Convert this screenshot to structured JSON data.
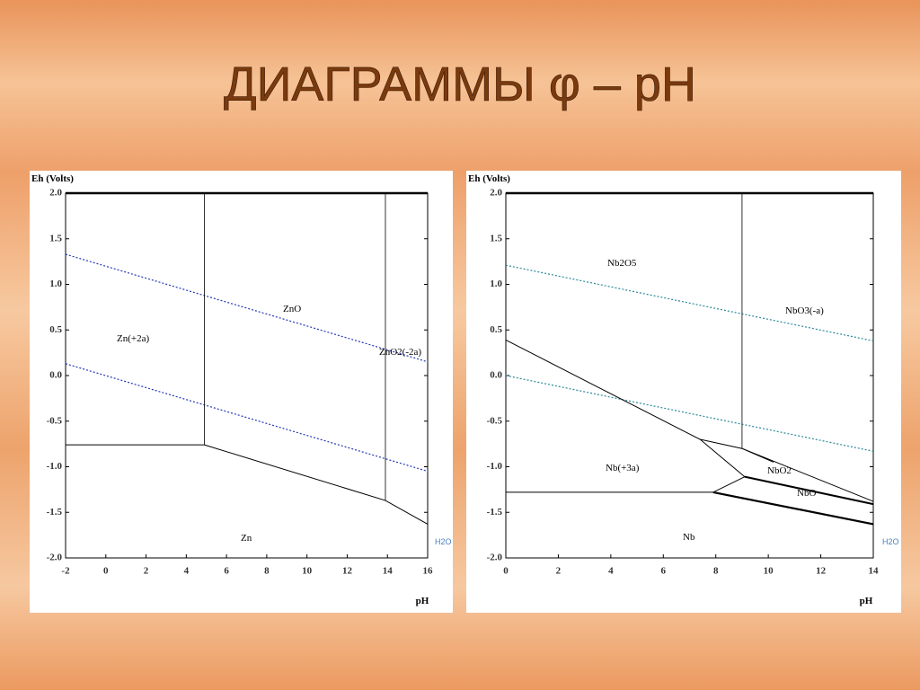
{
  "title": "ДИАГРАММЫ φ – pH",
  "chart_data": [
    {
      "type": "line",
      "x_label": "pH",
      "y_label": "Eh (Volts)",
      "xlim": [
        -2,
        16
      ],
      "xticks": [
        -2,
        0,
        2,
        4,
        6,
        8,
        10,
        12,
        14,
        16
      ],
      "ylim": [
        -2,
        2
      ],
      "yticks": [
        {
          "value": -2,
          "label": "-2.0"
        },
        {
          "value": -1.5,
          "label": "-1.5"
        },
        {
          "value": -1,
          "label": "-1.0"
        },
        -0.5,
        {
          "value": 0,
          "label": "0.0"
        },
        0.5,
        {
          "value": 1,
          "label": "1.0"
        },
        1.5,
        {
          "value": 2,
          "label": "2.0"
        }
      ],
      "series": [
        {
          "color": "#2438b8",
          "linestyle": "dotted",
          "linewidth": 1.2,
          "x": [
            -2,
            16
          ],
          "values": [
            1.33,
            0.15
          ]
        },
        {
          "color": "#2438b8",
          "linestyle": "dotted",
          "linewidth": 1.2,
          "x": [
            -2,
            16
          ],
          "values": [
            0.13,
            -1.05
          ]
        },
        {
          "color": "#000000",
          "linestyle": "solid",
          "linewidth": 1,
          "x": [
            -2,
            4.9
          ],
          "values": [
            -0.76,
            -0.76
          ]
        },
        {
          "color": "#000000",
          "linestyle": "solid",
          "linewidth": 1,
          "x": [
            4.9,
            13.9,
            16
          ],
          "values": [
            -0.76,
            -1.37,
            -1.63
          ]
        },
        {
          "color": "#000000",
          "linestyle": "solid",
          "linewidth": 0.8,
          "x": [
            4.9,
            4.9
          ],
          "values": [
            -0.76,
            2
          ]
        },
        {
          "color": "#000000",
          "linestyle": "solid",
          "linewidth": 0.8,
          "x": [
            13.9,
            13.9
          ],
          "values": [
            -1.37,
            2
          ]
        }
      ],
      "annotations": [
        "Zn(+2a)",
        "ZnO",
        "ZnO2(-2a)",
        "Zn",
        "H2O"
      ]
    },
    {
      "type": "line",
      "x_label": "pH",
      "y_label": "Eh (Volts)",
      "xlim": [
        0,
        14
      ],
      "xticks": [
        0,
        2,
        4,
        6,
        8,
        10,
        12,
        14
      ],
      "ylim": [
        -2,
        2
      ],
      "yticks": [
        {
          "value": -2,
          "label": "-2.0"
        },
        {
          "value": -1.5,
          "label": "-1.5"
        },
        {
          "value": -1,
          "label": "-1.0"
        },
        -0.5,
        {
          "value": 0,
          "label": "0.0"
        },
        0.5,
        {
          "value": 1,
          "label": "1.0"
        },
        1.5,
        {
          "value": 2,
          "label": "2.0"
        }
      ],
      "series": [
        {
          "color": "#2a8a9a",
          "linestyle": "dotted",
          "linewidth": 1.2,
          "x": [
            0,
            14
          ],
          "values": [
            1.21,
            0.38
          ]
        },
        {
          "color": "#2a8a9a",
          "linestyle": "dotted",
          "linewidth": 1.2,
          "x": [
            0,
            14
          ],
          "values": [
            0,
            -0.83
          ]
        },
        {
          "color": "#000000",
          "linestyle": "solid",
          "linewidth": 0.8,
          "x": [
            9,
            9
          ],
          "values": [
            -0.8,
            2
          ]
        },
        {
          "color": "#000000",
          "linestyle": "solid",
          "linewidth": 1,
          "x": [
            0,
            7.4,
            9.1
          ],
          "values": [
            0.39,
            -0.7,
            -1.11
          ]
        },
        {
          "color": "#000000",
          "linestyle": "solid",
          "linewidth": 1,
          "x": [
            7.4,
            9,
            10.2
          ],
          "values": [
            -0.7,
            -0.8,
            -0.95
          ]
        },
        {
          "color": "#000000",
          "linestyle": "solid",
          "linewidth": 1,
          "x": [
            9,
            14
          ],
          "values": [
            -0.8,
            -1.38
          ]
        },
        {
          "color": "#000000",
          "linestyle": "solid",
          "linewidth": 2,
          "x": [
            9.1,
            14
          ],
          "values": [
            -1.11,
            -1.41
          ]
        },
        {
          "color": "#000000",
          "linestyle": "solid",
          "linewidth": 1,
          "x": [
            0,
            7.9,
            9.1
          ],
          "values": [
            -1.28,
            -1.28,
            -1.11
          ]
        },
        {
          "color": "#000000",
          "linestyle": "solid",
          "linewidth": 2.2,
          "x": [
            7.9,
            14
          ],
          "values": [
            -1.28,
            -1.63
          ]
        }
      ],
      "annotations": [
        "Nb2O5",
        "NbO3(-a)",
        "Nb(+3a)",
        "NbO2",
        "NbO",
        "Nb",
        "H2O"
      ]
    }
  ]
}
